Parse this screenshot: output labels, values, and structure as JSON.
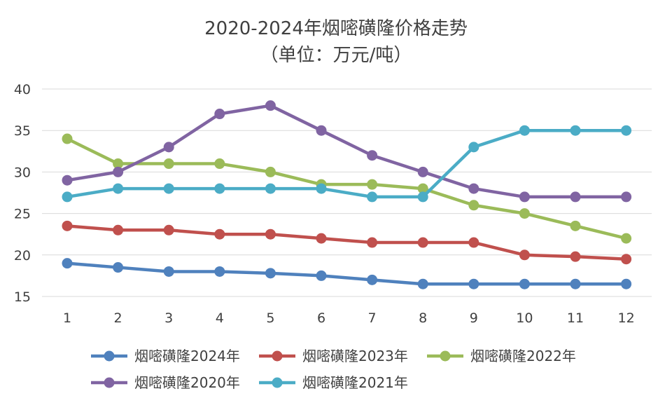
{
  "chart_data": {
    "type": "line",
    "title": "2020-2024年烟嘧磺隆价格走势",
    "subtitle": "（单位：万元/吨）",
    "xlabel": "",
    "ylabel": "",
    "x": [
      "1",
      "2",
      "3",
      "4",
      "5",
      "6",
      "7",
      "8",
      "9",
      "10",
      "11",
      "12"
    ],
    "ylim": [
      15,
      40
    ],
    "yticks": [
      "15",
      "20",
      "25",
      "30",
      "35",
      "40"
    ],
    "grid": true,
    "legend_position": "bottom",
    "series": [
      {
        "name": "烟嘧磺隆2024年",
        "color": "#4f81bd",
        "values": [
          19,
          18.5,
          18,
          18,
          17.8,
          17.5,
          17,
          16.5,
          16.5,
          16.5,
          16.5,
          16.5
        ]
      },
      {
        "name": "烟嘧磺隆2023年",
        "color": "#c0504d",
        "values": [
          23.5,
          23,
          23,
          22.5,
          22.5,
          22,
          21.5,
          21.5,
          21.5,
          20,
          19.8,
          19.5
        ]
      },
      {
        "name": "烟嘧磺隆2022年",
        "color": "#9bbb59",
        "values": [
          34,
          31,
          31,
          31,
          30,
          28.5,
          28.5,
          28,
          26,
          25,
          23.5,
          22
        ]
      },
      {
        "name": "烟嘧磺隆2020年",
        "color": "#8064a2",
        "values": [
          29,
          30,
          33,
          37,
          38,
          35,
          32,
          30,
          28,
          27,
          27,
          27
        ]
      },
      {
        "name": "烟嘧磺隆2021年",
        "color": "#4bacc6",
        "values": [
          27,
          28,
          28,
          28,
          28,
          28,
          27,
          27,
          33,
          35,
          35,
          35
        ]
      }
    ]
  }
}
